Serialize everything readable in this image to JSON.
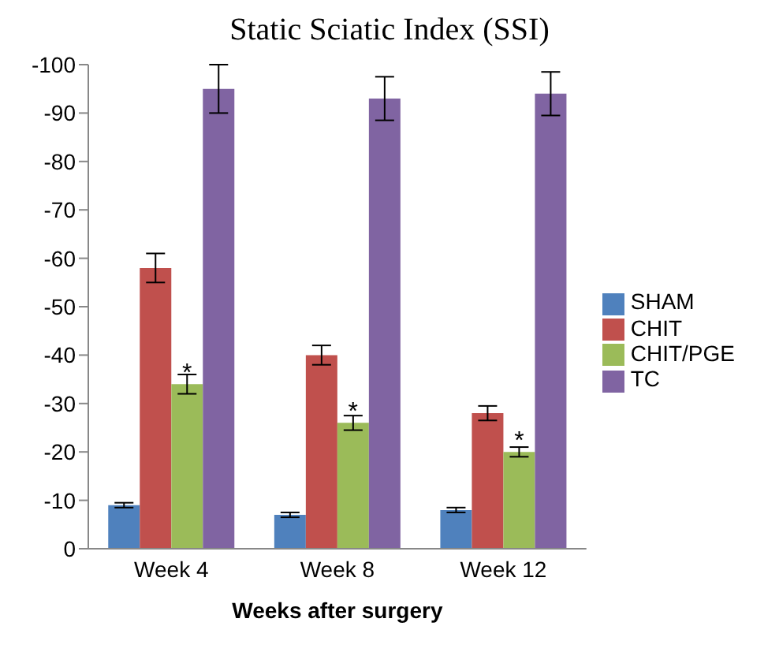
{
  "chart_data": {
    "type": "bar",
    "title": "Static Sciatic Index (SSI)",
    "xlabel": "Weeks after surgery",
    "categories": [
      "Week 4",
      "Week 8",
      "Week 12"
    ],
    "series": [
      {
        "name": "SHAM",
        "color": "#4f81bd",
        "values": [
          -9,
          -7,
          -8
        ],
        "errors": [
          0.5,
          0.5,
          0.5
        ]
      },
      {
        "name": "CHIT",
        "color": "#c0504d",
        "values": [
          -58,
          -40,
          -28
        ],
        "errors": [
          3,
          2,
          1.5
        ]
      },
      {
        "name": "CHIT/PGE",
        "color": "#9bbb59",
        "values": [
          -34,
          -26,
          -20
        ],
        "errors": [
          2,
          1.5,
          1
        ],
        "value_labels": [
          "*",
          "*",
          "*"
        ]
      },
      {
        "name": "TC",
        "color": "#8064a2",
        "values": [
          -95,
          -93,
          -94
        ],
        "errors": [
          5,
          4.5,
          4.5
        ]
      }
    ],
    "ylim": [
      0,
      -100
    ],
    "yticks": [
      0,
      -10,
      -20,
      -30,
      -40,
      -50,
      -60,
      -70,
      -80,
      -90,
      -100
    ],
    "legend": "right"
  }
}
